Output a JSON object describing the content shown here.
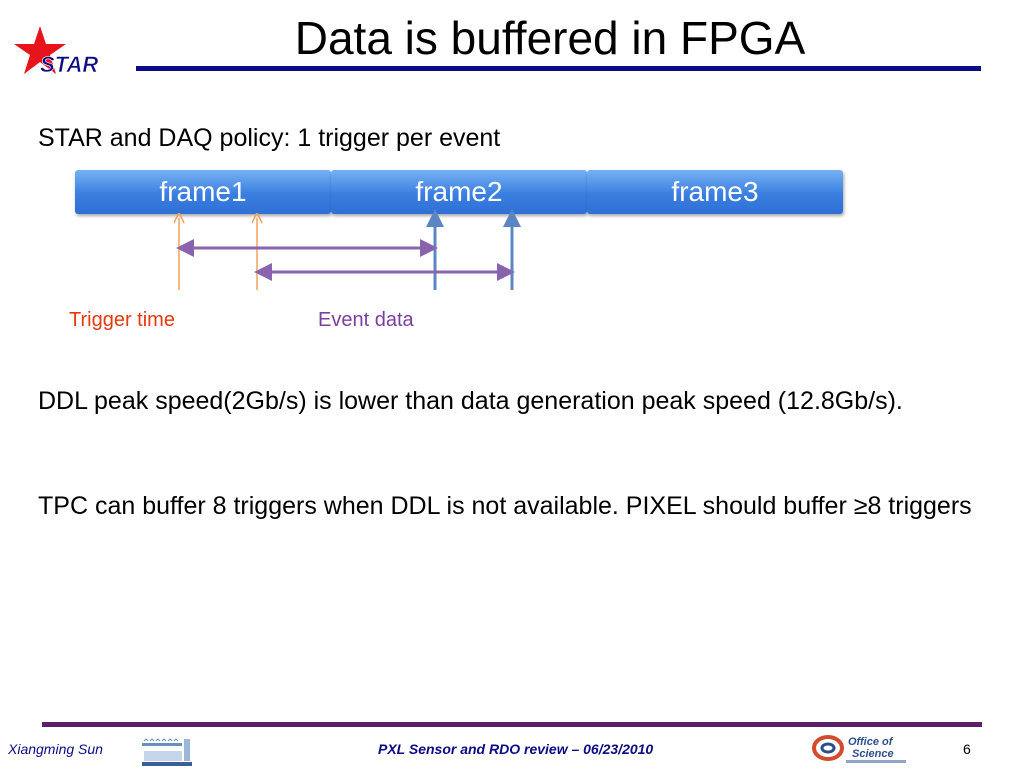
{
  "title": "Data is buffered in FPGA",
  "logo_text": "STAR",
  "bullets": [
    "STAR and DAQ policy: 1 trigger per event",
    "DDL peak speed(2Gb/s) is lower than data generation peak speed (12.8Gb/s).",
    "TPC can buffer 8 triggers when DDL is not available. PIXEL should buffer ≥8 triggers"
  ],
  "diagram": {
    "frames": [
      "frame1",
      "frame2",
      "frame3"
    ],
    "trigger_label": "Trigger time",
    "event_label": "Event data"
  },
  "footer": {
    "author": "Xiangming Sun",
    "event": "PXL Sensor and RDO review – 06/23/2010",
    "page": "6",
    "doe_text_1": "Office of",
    "doe_text_2": "Science"
  },
  "colors": {
    "title_line": "#0b0b84",
    "footer_line": "#5a1f66",
    "trigger": "#e33a10",
    "event": "#7a3fa0",
    "frame_blue": "#3a7fe0"
  }
}
